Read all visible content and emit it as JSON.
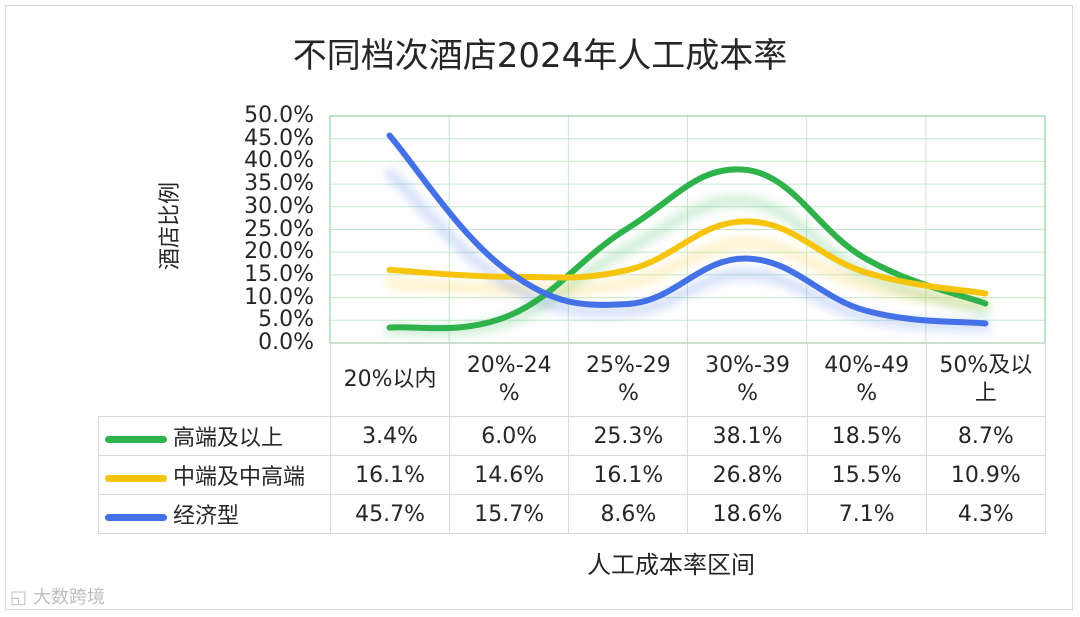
{
  "chart_data": {
    "type": "line",
    "title": "不同档次酒店2024年人工成本率",
    "xlabel": "人工成本率区间",
    "ylabel": "酒店比例",
    "ylim": [
      0,
      50
    ],
    "yticks": [
      "50.0%",
      "45.0%",
      "40.0%",
      "35.0%",
      "30.0%",
      "25.0%",
      "20.0%",
      "15.0%",
      "10.0%",
      "5.0%",
      "0.0%"
    ],
    "categories": [
      [
        "20%以内"
      ],
      [
        "20%-24",
        "%"
      ],
      [
        "25%-29",
        "%"
      ],
      [
        "30%-39",
        "%"
      ],
      [
        "40%-49",
        "%"
      ],
      [
        "50%及以",
        "上"
      ]
    ],
    "grid": true,
    "smooth": true,
    "legend": "data-table",
    "series": [
      {
        "name": "高端及以上",
        "color": "#2fb24c",
        "values": [
          3.4,
          6.0,
          25.3,
          38.1,
          18.5,
          8.7
        ],
        "labels": [
          "3.4%",
          "6.0%",
          "25.3%",
          "38.1%",
          "18.5%",
          "8.7%"
        ]
      },
      {
        "name": "中端及中高端",
        "color": "#f7c40c",
        "values": [
          16.1,
          14.6,
          16.1,
          26.8,
          15.5,
          10.9
        ],
        "labels": [
          "16.1%",
          "14.6%",
          "16.1%",
          "26.8%",
          "15.5%",
          "10.9%"
        ]
      },
      {
        "name": "经济型",
        "color": "#4472e6",
        "values": [
          45.7,
          15.7,
          8.6,
          18.6,
          7.1,
          4.3
        ],
        "labels": [
          "45.7%",
          "15.7%",
          "8.6%",
          "18.6%",
          "7.1%",
          "4.3%"
        ]
      }
    ]
  },
  "watermark": {
    "icon": "logo-icon",
    "text": "大数跨境"
  }
}
